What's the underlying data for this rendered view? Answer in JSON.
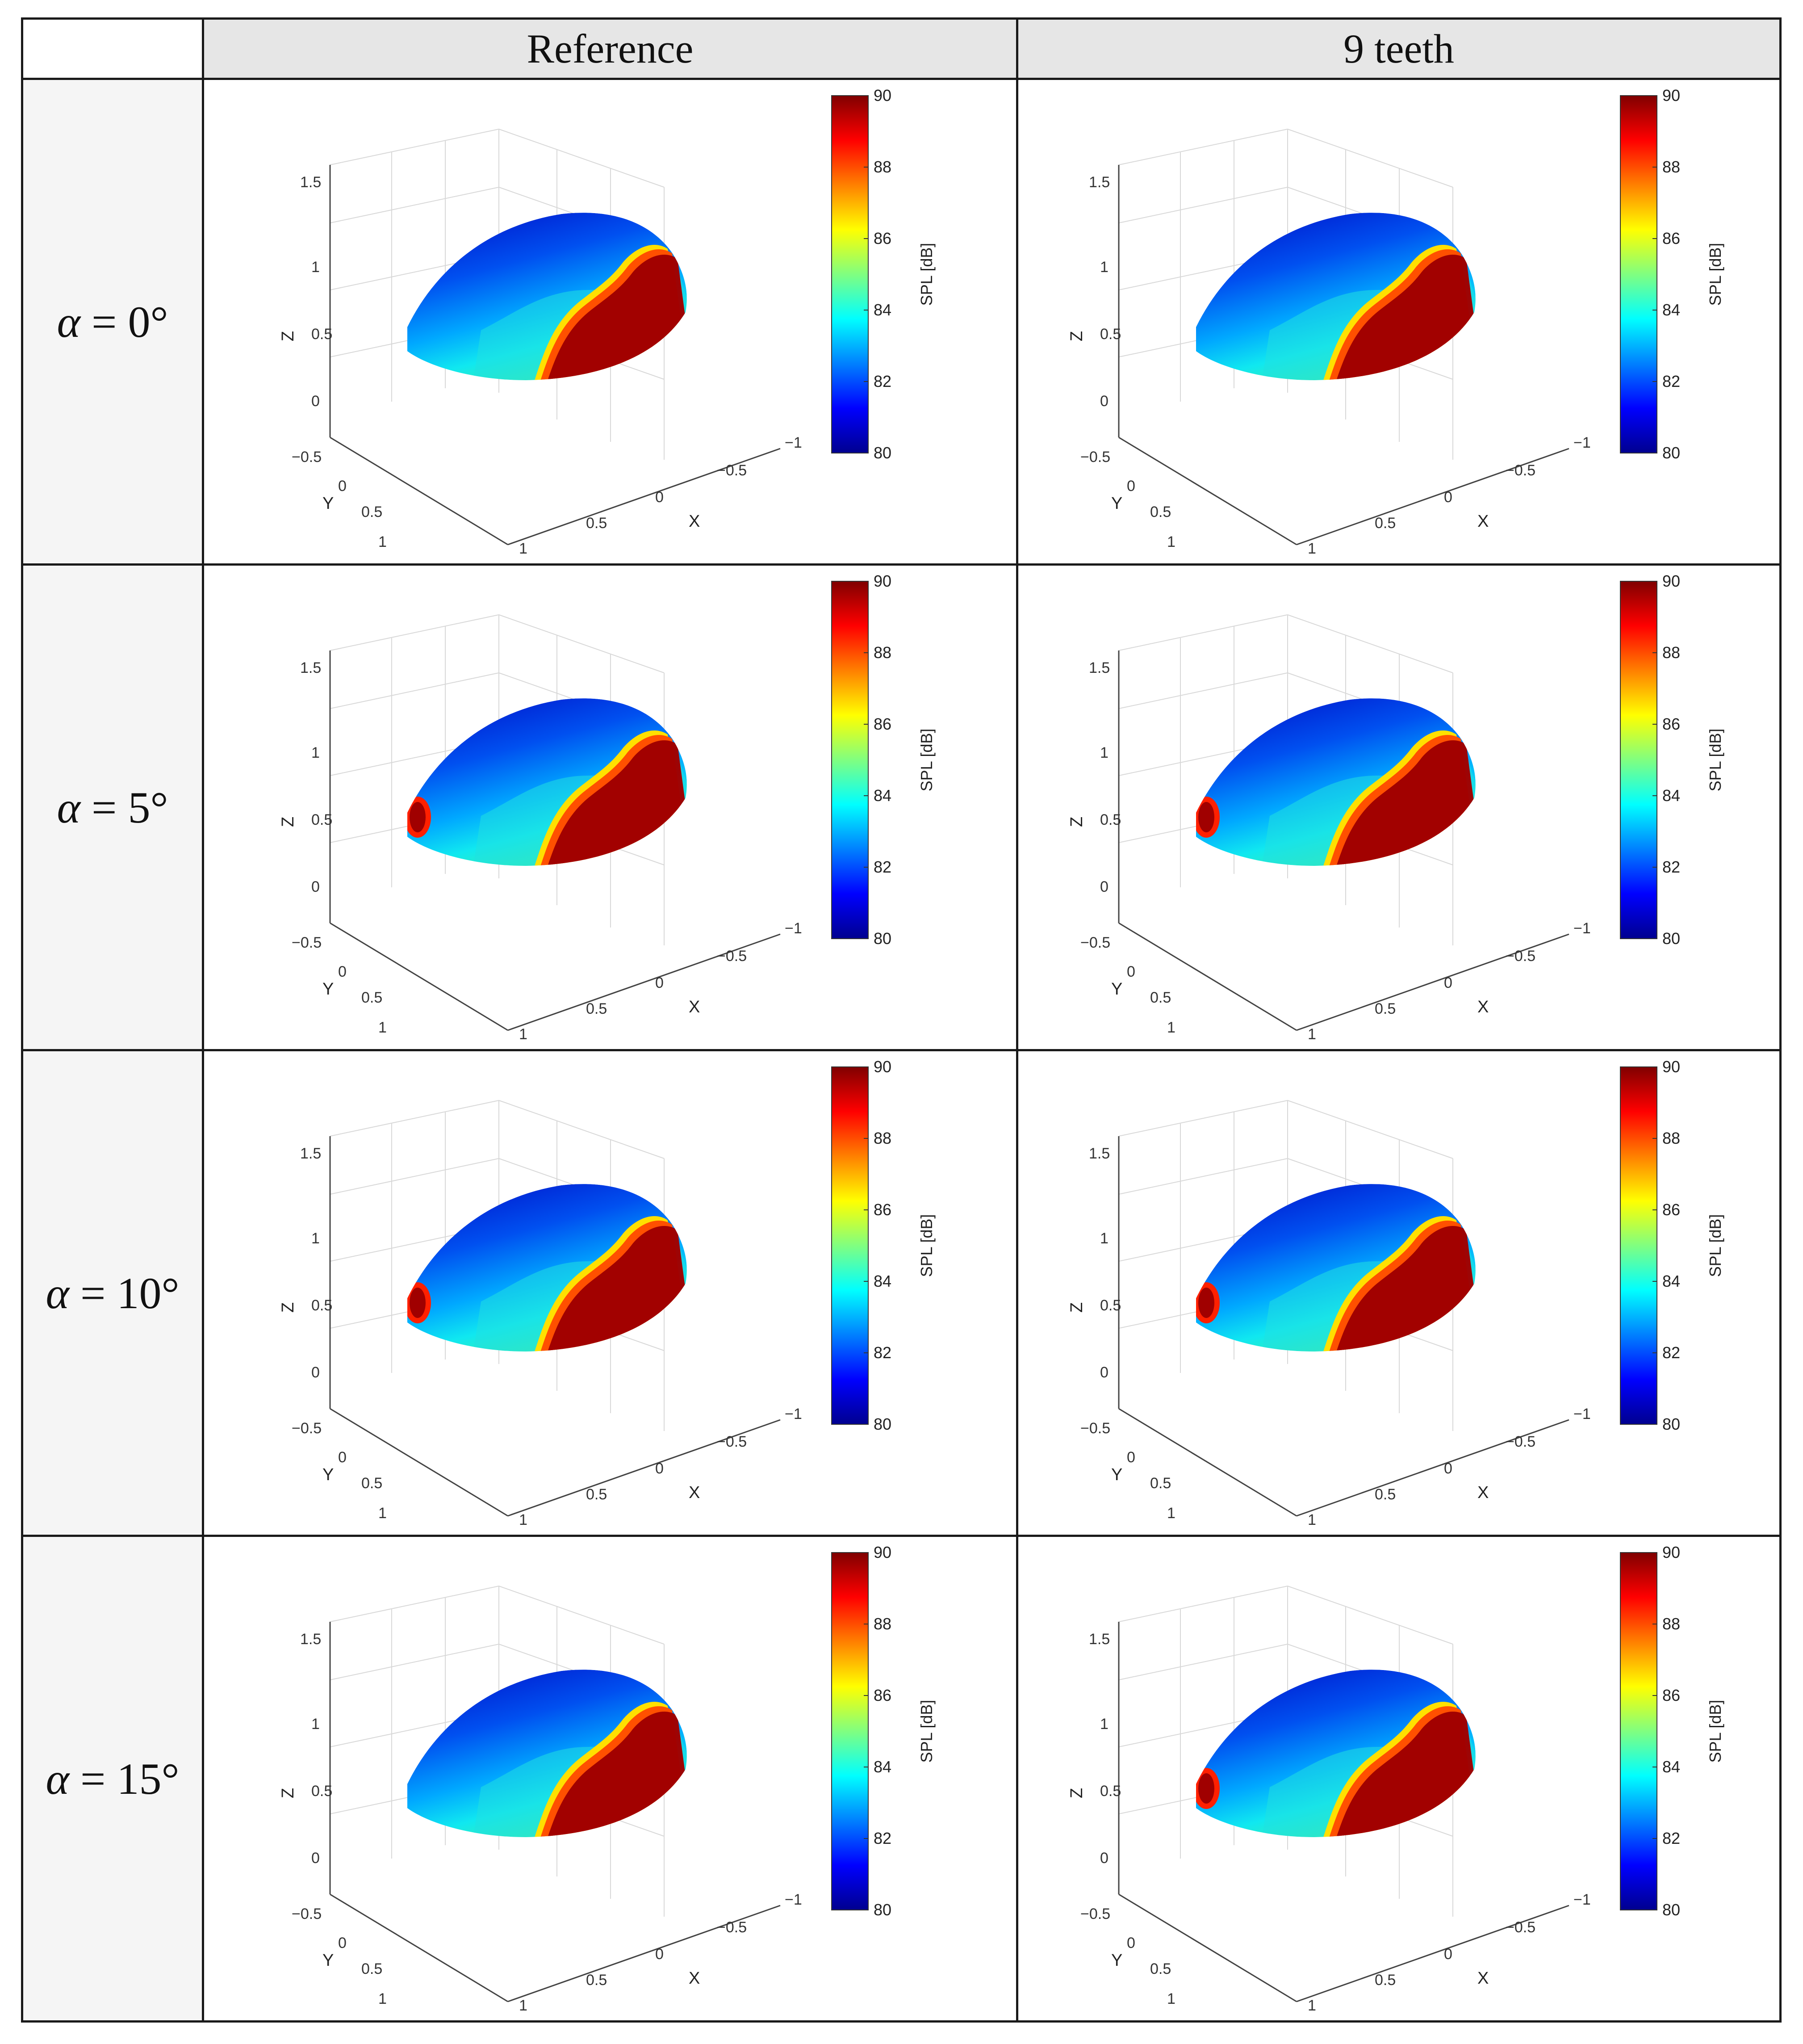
{
  "table": {
    "headers": [
      "",
      "Reference",
      "9 teeth"
    ],
    "rows": [
      {
        "symbol": "α",
        "rest": " = 0°",
        "mod": [
          {
            "h": false,
            "r": 0.38,
            "ang": 0.0
          },
          {
            "h": false,
            "r": 0.34,
            "ang": 0.0
          }
        ]
      },
      {
        "symbol": "α",
        "rest": " = 5°",
        "mod": [
          {
            "h": true,
            "r": 0.42,
            "ang": 0.05
          },
          {
            "h": true,
            "r": 0.36,
            "ang": 0.05
          }
        ]
      },
      {
        "symbol": "α",
        "rest": " = 10°",
        "mod": [
          {
            "h": true,
            "r": 0.36,
            "ang": 0.1
          },
          {
            "h": true,
            "r": 0.38,
            "ang": 0.1
          }
        ]
      },
      {
        "symbol": "α",
        "rest": " = 15°",
        "mod": [
          {
            "h": false,
            "r": 0.3,
            "ang": 0.15
          },
          {
            "h": true,
            "r": 0.28,
            "ang": 0.15
          }
        ]
      }
    ]
  },
  "chart_data": {
    "type": "surface",
    "panels": 8,
    "axes": {
      "xlabel": "X",
      "ylabel": "Y",
      "zlabel": "Z",
      "x_ticks": [
        "−1",
        "−0.5",
        "0",
        "0.5",
        "1"
      ],
      "y_ticks": [
        "−0.5",
        "0",
        "0.5",
        "1"
      ],
      "z_ticks": [
        "0",
        "0.5",
        "1",
        "1.5"
      ]
    },
    "colorbar": {
      "label": "SPL [dB]",
      "ticks": [
        "80",
        "82",
        "84",
        "86",
        "88",
        "90"
      ],
      "range": [
        80,
        90
      ],
      "colormap": "jet",
      "colors": [
        "#00008f",
        "#0000ff",
        "#0080ff",
        "#00ffff",
        "#80ff80",
        "#ffff00",
        "#ff8000",
        "#ff0000",
        "#800000"
      ]
    }
  }
}
